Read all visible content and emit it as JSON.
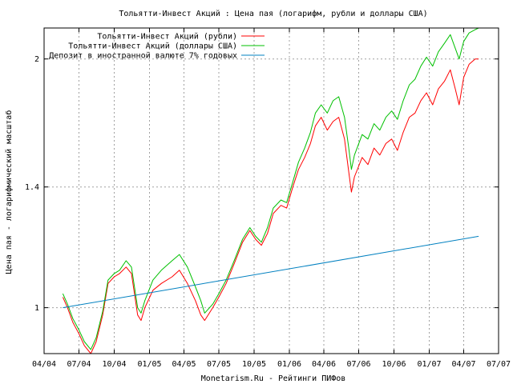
{
  "chart_data": {
    "type": "line",
    "title": "Тольятти-Инвест Акций : Цена пая (логарифм, рубли и доллары США)",
    "xlabel": "Monetarism.Ru - Рейтинги ПИФов",
    "ylabel": "Цена пая - логарифмический масштаб",
    "y_scale": "log",
    "ylim": [
      0.88,
      2.18
    ],
    "y_ticks": [
      1,
      1.4,
      2
    ],
    "y_tick_labels": [
      "1",
      "1.4",
      "2"
    ],
    "x_ticks": [
      "2004-04",
      "2004-07",
      "2004-10",
      "2005-01",
      "2005-04",
      "2005-07",
      "2005-10",
      "2006-01",
      "2006-04",
      "2006-07",
      "2006-10",
      "2007-01",
      "2007-04",
      "2007-07"
    ],
    "x_tick_labels": [
      "04/04",
      "07/04",
      "10/04",
      "01/05",
      "04/05",
      "07/05",
      "10/05",
      "01/06",
      "04/06",
      "07/06",
      "10/06",
      "01/07",
      "04/07",
      "07/07"
    ],
    "xlim": [
      "2004-04",
      "2007-07"
    ],
    "grid": true,
    "legend_position": "top-left",
    "series": [
      {
        "name": "Тольятти-Инвест Акций (рубли)",
        "color": "#ff0000",
        "points": [
          [
            "2004-05-20",
            1.03
          ],
          [
            "2004-06-01",
            1.0
          ],
          [
            "2004-06-15",
            0.96
          ],
          [
            "2004-07-01",
            0.93
          ],
          [
            "2004-07-15",
            0.9
          ],
          [
            "2004-08-01",
            0.88
          ],
          [
            "2004-08-15",
            0.91
          ],
          [
            "2004-09-01",
            0.98
          ],
          [
            "2004-09-15",
            1.07
          ],
          [
            "2004-10-01",
            1.09
          ],
          [
            "2004-10-15",
            1.1
          ],
          [
            "2004-11-01",
            1.12
          ],
          [
            "2004-11-15",
            1.1
          ],
          [
            "2004-12-01",
            0.98
          ],
          [
            "2004-12-10",
            0.965
          ],
          [
            "2004-12-20",
            1.0
          ],
          [
            "2005-01-10",
            1.05
          ],
          [
            "2005-02-01",
            1.07
          ],
          [
            "2005-03-01",
            1.09
          ],
          [
            "2005-03-20",
            1.11
          ],
          [
            "2005-04-10",
            1.07
          ],
          [
            "2005-05-01",
            1.02
          ],
          [
            "2005-05-15",
            0.98
          ],
          [
            "2005-05-25",
            0.965
          ],
          [
            "2005-06-15",
            1.0
          ],
          [
            "2005-07-01",
            1.03
          ],
          [
            "2005-07-20",
            1.07
          ],
          [
            "2005-08-10",
            1.13
          ],
          [
            "2005-09-01",
            1.2
          ],
          [
            "2005-09-20",
            1.24
          ],
          [
            "2005-10-05",
            1.21
          ],
          [
            "2005-10-20",
            1.19
          ],
          [
            "2005-11-05",
            1.23
          ],
          [
            "2005-11-20",
            1.3
          ],
          [
            "2005-12-10",
            1.33
          ],
          [
            "2005-12-25",
            1.32
          ],
          [
            "2006-01-10",
            1.4
          ],
          [
            "2006-01-25",
            1.47
          ],
          [
            "2006-02-10",
            1.52
          ],
          [
            "2006-02-25",
            1.58
          ],
          [
            "2006-03-10",
            1.66
          ],
          [
            "2006-03-25",
            1.7
          ],
          [
            "2006-04-10",
            1.64
          ],
          [
            "2006-04-25",
            1.68
          ],
          [
            "2006-05-10",
            1.7
          ],
          [
            "2006-05-25",
            1.6
          ],
          [
            "2006-06-05",
            1.46
          ],
          [
            "2006-06-12",
            1.38
          ],
          [
            "2006-06-20",
            1.44
          ],
          [
            "2006-07-10",
            1.52
          ],
          [
            "2006-07-25",
            1.49
          ],
          [
            "2006-08-10",
            1.56
          ],
          [
            "2006-08-25",
            1.53
          ],
          [
            "2006-09-10",
            1.58
          ],
          [
            "2006-09-25",
            1.6
          ],
          [
            "2006-10-10",
            1.55
          ],
          [
            "2006-10-25",
            1.63
          ],
          [
            "2006-11-10",
            1.7
          ],
          [
            "2006-11-25",
            1.72
          ],
          [
            "2006-12-10",
            1.78
          ],
          [
            "2006-12-25",
            1.82
          ],
          [
            "2007-01-10",
            1.76
          ],
          [
            "2007-01-25",
            1.84
          ],
          [
            "2007-02-10",
            1.88
          ],
          [
            "2007-02-25",
            1.94
          ],
          [
            "2007-03-10",
            1.84
          ],
          [
            "2007-03-20",
            1.76
          ],
          [
            "2007-04-01",
            1.9
          ],
          [
            "2007-04-15",
            1.97
          ],
          [
            "2007-05-01",
            2.0
          ],
          [
            "2007-05-10",
            2.0
          ]
        ]
      },
      {
        "name": "Тольятти-Инвест Акций (доллары США)",
        "color": "#00c000",
        "points": [
          [
            "2004-05-20",
            1.04
          ],
          [
            "2004-06-01",
            1.01
          ],
          [
            "2004-06-15",
            0.97
          ],
          [
            "2004-07-01",
            0.94
          ],
          [
            "2004-07-15",
            0.91
          ],
          [
            "2004-08-01",
            0.89
          ],
          [
            "2004-08-15",
            0.92
          ],
          [
            "2004-09-01",
            0.99
          ],
          [
            "2004-09-15",
            1.08
          ],
          [
            "2004-10-01",
            1.1
          ],
          [
            "2004-10-15",
            1.11
          ],
          [
            "2004-11-01",
            1.14
          ],
          [
            "2004-11-15",
            1.12
          ],
          [
            "2004-12-01",
            1.0
          ],
          [
            "2004-12-10",
            0.985
          ],
          [
            "2004-12-20",
            1.02
          ],
          [
            "2005-01-10",
            1.08
          ],
          [
            "2005-02-01",
            1.11
          ],
          [
            "2005-03-01",
            1.14
          ],
          [
            "2005-03-20",
            1.16
          ],
          [
            "2005-04-10",
            1.12
          ],
          [
            "2005-05-01",
            1.06
          ],
          [
            "2005-05-15",
            1.02
          ],
          [
            "2005-05-25",
            0.985
          ],
          [
            "2005-06-15",
            1.01
          ],
          [
            "2005-07-01",
            1.04
          ],
          [
            "2005-07-20",
            1.08
          ],
          [
            "2005-08-10",
            1.14
          ],
          [
            "2005-09-01",
            1.21
          ],
          [
            "2005-09-20",
            1.25
          ],
          [
            "2005-10-05",
            1.22
          ],
          [
            "2005-10-20",
            1.2
          ],
          [
            "2005-11-05",
            1.25
          ],
          [
            "2005-11-20",
            1.32
          ],
          [
            "2005-12-10",
            1.35
          ],
          [
            "2005-12-25",
            1.34
          ],
          [
            "2006-01-10",
            1.42
          ],
          [
            "2006-01-25",
            1.5
          ],
          [
            "2006-02-10",
            1.56
          ],
          [
            "2006-02-25",
            1.63
          ],
          [
            "2006-03-10",
            1.72
          ],
          [
            "2006-03-25",
            1.76
          ],
          [
            "2006-04-10",
            1.72
          ],
          [
            "2006-04-25",
            1.78
          ],
          [
            "2006-05-10",
            1.8
          ],
          [
            "2006-05-25",
            1.7
          ],
          [
            "2006-06-05",
            1.56
          ],
          [
            "2006-06-12",
            1.47
          ],
          [
            "2006-06-20",
            1.53
          ],
          [
            "2006-07-10",
            1.62
          ],
          [
            "2006-07-25",
            1.6
          ],
          [
            "2006-08-10",
            1.67
          ],
          [
            "2006-08-25",
            1.64
          ],
          [
            "2006-09-10",
            1.7
          ],
          [
            "2006-09-25",
            1.73
          ],
          [
            "2006-10-10",
            1.69
          ],
          [
            "2006-10-25",
            1.78
          ],
          [
            "2006-11-10",
            1.86
          ],
          [
            "2006-11-25",
            1.89
          ],
          [
            "2006-12-10",
            1.96
          ],
          [
            "2006-12-25",
            2.01
          ],
          [
            "2007-01-10",
            1.96
          ],
          [
            "2007-01-25",
            2.04
          ],
          [
            "2007-02-10",
            2.09
          ],
          [
            "2007-02-25",
            2.14
          ],
          [
            "2007-03-10",
            2.06
          ],
          [
            "2007-03-20",
            2.0
          ],
          [
            "2007-04-01",
            2.1
          ],
          [
            "2007-04-15",
            2.15
          ],
          [
            "2007-05-01",
            2.17
          ],
          [
            "2007-05-10",
            2.18
          ]
        ]
      },
      {
        "name": "Депозит в иностранной валюте 7% годовых",
        "color": "#0080c0",
        "points": [
          [
            "2004-05-20",
            1.0
          ],
          [
            "2007-05-10",
            1.22
          ]
        ]
      }
    ]
  }
}
